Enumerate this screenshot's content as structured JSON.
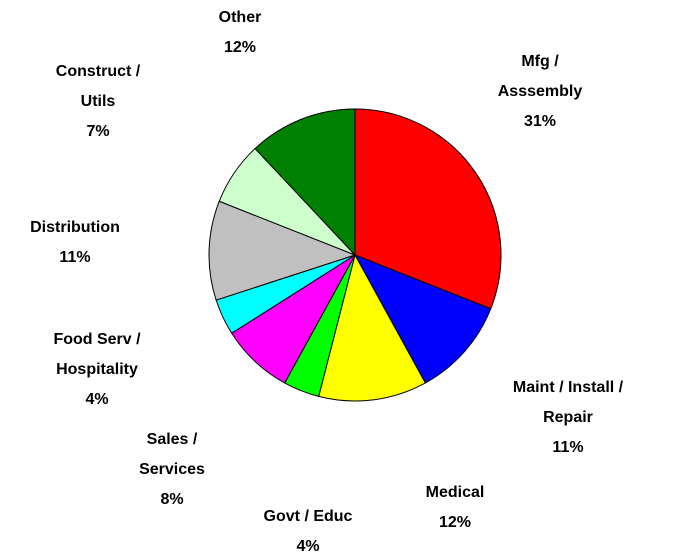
{
  "chart_data": {
    "type": "pie",
    "categories": [
      [
        "Mfg /",
        "Asssembly"
      ],
      [
        "Maint / Install /",
        "Repair"
      ],
      [
        "Medical"
      ],
      [
        "Govt / Educ"
      ],
      [
        "Sales /",
        "Services"
      ],
      [
        "Food Serv /",
        "Hospitality"
      ],
      [
        "Distribution"
      ],
      [
        "Construct /",
        "Utils"
      ],
      [
        "Other"
      ]
    ],
    "values": [
      31,
      11,
      12,
      4,
      8,
      4,
      11,
      7,
      12
    ],
    "value_labels": [
      "31%",
      "11%",
      "12%",
      "4%",
      "8%",
      "4%",
      "11%",
      "7%",
      "12%"
    ],
    "colors": [
      "#ff0000",
      "#0000ff",
      "#ffff00",
      "#00ff00",
      "#ff00ff",
      "#00ffff",
      "#c0c0c0",
      "#ccffcc",
      "#008000"
    ]
  }
}
